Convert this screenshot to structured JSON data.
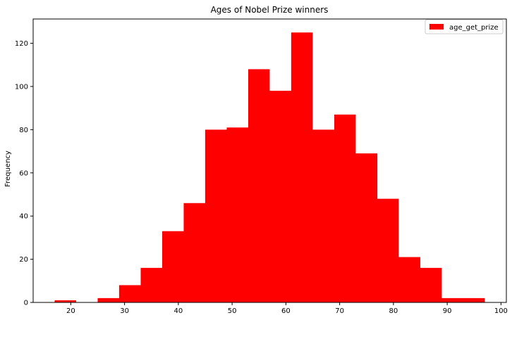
{
  "chart_data": {
    "type": "bar",
    "title": "Ages of Nobel Prize winners",
    "xlabel": "",
    "ylabel": "Frequency",
    "bin_edges": [
      17,
      21,
      25,
      29,
      33,
      37,
      41,
      45,
      49,
      53,
      57,
      61,
      65,
      69,
      73,
      77,
      81,
      85,
      89,
      93,
      97
    ],
    "series": [
      {
        "name": "age_get_prize",
        "color": "#ff0000",
        "values": [
          1,
          0,
          2,
          8,
          16,
          33,
          46,
          80,
          81,
          108,
          98,
          125,
          80,
          87,
          69,
          48,
          21,
          16,
          2,
          2
        ]
      }
    ],
    "xlim": [
      13,
      101
    ],
    "ylim": [
      0,
      131.25
    ],
    "xticks": [
      20,
      30,
      40,
      50,
      60,
      70,
      80,
      90,
      100
    ],
    "yticks": [
      0,
      20,
      40,
      60,
      80,
      100,
      120
    ],
    "grid": false,
    "legend": "top-right"
  }
}
